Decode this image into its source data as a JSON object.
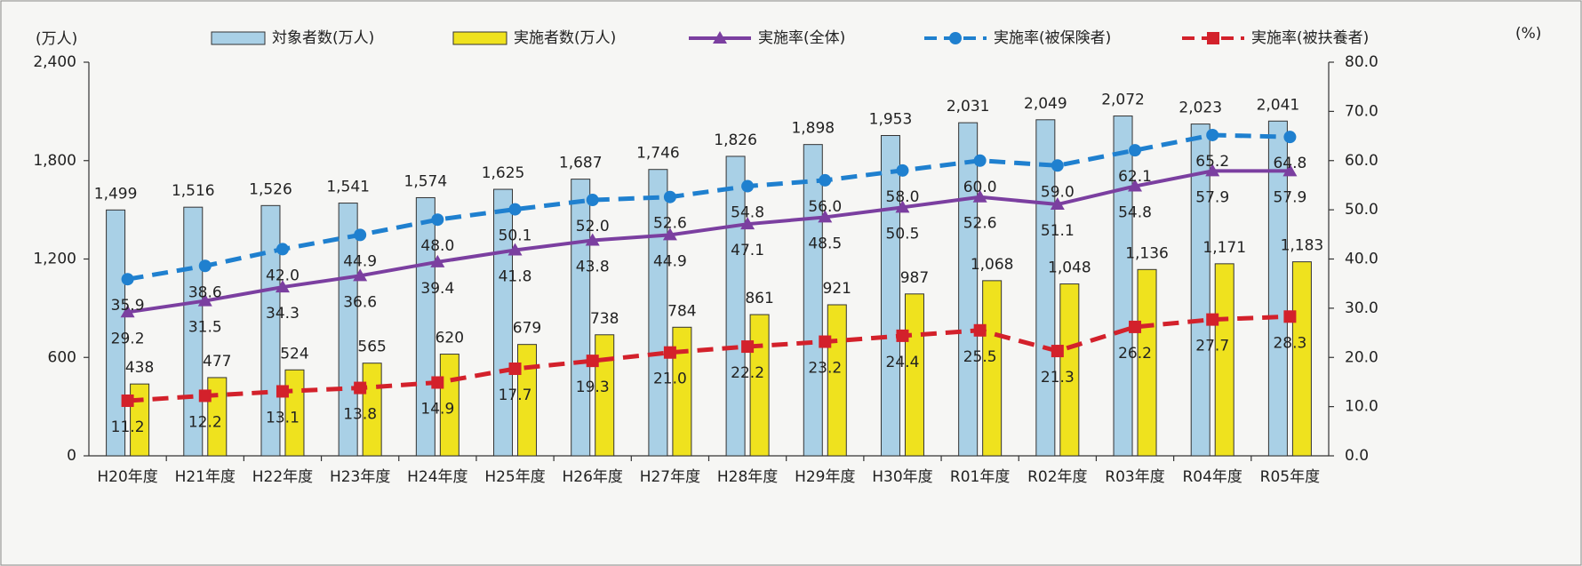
{
  "chart_data": {
    "type": "bar",
    "ylabel": "(万人)",
    "y2label": "(%)",
    "categories": [
      "H20年度",
      "H21年度",
      "H22年度",
      "H23年度",
      "H24年度",
      "H25年度",
      "H26年度",
      "H27年度",
      "H28年度",
      "H29年度",
      "H30年度",
      "R01年度",
      "R02年度",
      "R03年度",
      "R04年度",
      "R05年度"
    ],
    "ylim": [
      0,
      2400
    ],
    "yticks": [
      0,
      600,
      {
        "value": 1200,
        "label": "1,200"
      },
      {
        "value": 1800,
        "label": "1,800"
      },
      {
        "value": 2400,
        "label": "2,400"
      }
    ],
    "y2lim": [
      0,
      80
    ],
    "y2ticks": [
      {
        "value": 0,
        "label": "0.0"
      },
      {
        "value": 10,
        "label": "10.0"
      },
      {
        "value": 20,
        "label": "20.0"
      },
      {
        "value": 30,
        "label": "30.0"
      },
      {
        "value": 40,
        "label": "40.0"
      },
      {
        "value": 50,
        "label": "50.0"
      },
      {
        "value": 60,
        "label": "60.0"
      },
      {
        "value": 70,
        "label": "70.0"
      },
      {
        "value": 80,
        "label": "80.0"
      }
    ],
    "grid": false,
    "series": [
      {
        "name": "対象者数(万人)",
        "type": "bar",
        "color": "#a9d0e6",
        "values": [
          1499,
          1516,
          1526,
          1541,
          1574,
          1625,
          1687,
          1746,
          1826,
          1898,
          1953,
          2031,
          2049,
          2072,
          2023,
          2041
        ],
        "value_labels": [
          "1,499",
          "1,516",
          "1,526",
          "1,541",
          "1,574",
          "1,625",
          "1,687",
          "1,746",
          "1,826",
          "1,898",
          "1,953",
          "2,031",
          "2,049",
          "2,072",
          "2,023",
          "2,041"
        ]
      },
      {
        "name": "実施者数(万人)",
        "type": "bar",
        "color": "#efe21e",
        "values": [
          438,
          477,
          524,
          565,
          620,
          679,
          738,
          784,
          861,
          921,
          987,
          1068,
          1048,
          1136,
          1171,
          1183
        ],
        "value_labels": [
          "438",
          "477",
          "524",
          "565",
          "620",
          "679",
          "738",
          "784",
          "861",
          "921",
          "987",
          "1,068",
          "1,048",
          "1,136",
          "1,171",
          "1,183"
        ]
      },
      {
        "name": "実施率(全体)",
        "type": "line",
        "axis": "y2",
        "color": "#7b3fa0",
        "marker": "triangle",
        "dashed": false,
        "values": [
          29.2,
          31.5,
          34.3,
          36.6,
          39.4,
          41.8,
          43.8,
          44.9,
          47.1,
          48.5,
          50.5,
          52.6,
          51.1,
          54.8,
          57.9,
          57.9
        ],
        "value_labels": [
          "29.2",
          "31.5",
          "34.3",
          "36.6",
          "39.4",
          "41.8",
          "43.8",
          "44.9",
          "47.1",
          "48.5",
          "50.5",
          "52.6",
          "51.1",
          "54.8",
          "57.9",
          "57.9"
        ]
      },
      {
        "name": "実施率(被保険者)",
        "type": "line",
        "axis": "y2",
        "color": "#1f80cf",
        "marker": "circle",
        "dashed": true,
        "values": [
          35.9,
          38.6,
          42.0,
          44.9,
          48.0,
          50.1,
          52.0,
          52.6,
          54.8,
          56.0,
          58.0,
          60.0,
          59.0,
          62.1,
          65.2,
          64.8
        ],
        "value_labels": [
          "35.9",
          "38.6",
          "42.0",
          "44.9",
          "48.0",
          "50.1",
          "52.0",
          "52.6",
          "54.8",
          "56.0",
          "58.0",
          "60.0",
          "59.0",
          "62.1",
          "65.2",
          "64.8"
        ]
      },
      {
        "name": "実施率(被扶養者)",
        "type": "line",
        "axis": "y2",
        "color": "#d3212b",
        "marker": "square",
        "dashed": true,
        "values": [
          11.2,
          12.2,
          13.1,
          13.8,
          14.9,
          17.7,
          19.3,
          21.0,
          22.2,
          23.2,
          24.4,
          25.5,
          21.3,
          26.2,
          27.7,
          28.3
        ],
        "value_labels": [
          "11.2",
          "12.2",
          "13.1",
          "13.8",
          "14.9",
          "17.7",
          "19.3",
          "21.0",
          "22.2",
          "23.2",
          "24.4",
          "25.5",
          "21.3",
          "26.2",
          "27.7",
          "28.3"
        ]
      }
    ]
  }
}
